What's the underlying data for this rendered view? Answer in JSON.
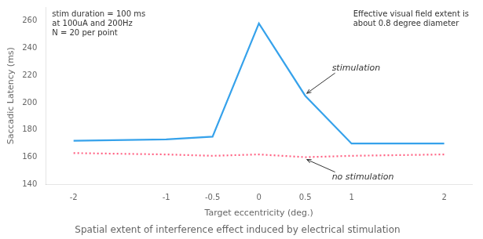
{
  "chart_data": {
    "type": "line",
    "title": "Spatial extent of interference effect induced by electrical stimulation",
    "xlabel": "Target eccentricity (deg.)",
    "ylabel": "Saccadic Latency (ms)",
    "x": [
      -2,
      -1,
      -0.5,
      0,
      0.5,
      1,
      2
    ],
    "xlim": [
      -2.3,
      2.3
    ],
    "xticks": [
      -2,
      -1,
      -0.5,
      0,
      0.5,
      1,
      2
    ],
    "ylim": [
      140,
      270
    ],
    "yticks": [
      140,
      160,
      180,
      200,
      220,
      240,
      260
    ],
    "grid": false,
    "series": [
      {
        "name": "stimulation",
        "line_style": "solid",
        "values": [
          172,
          173,
          175,
          258,
          205,
          170,
          170
        ]
      },
      {
        "name": "no stimulation",
        "line_style": "dotted",
        "values": [
          163,
          162,
          161,
          162,
          160,
          161,
          162
        ]
      }
    ],
    "annotations": [
      "stim duration = 100 ms\nat 100uA and 200Hz\nN = 20 per point",
      "Effective visual field extent is\nabout 0.8 degree diameter"
    ]
  }
}
